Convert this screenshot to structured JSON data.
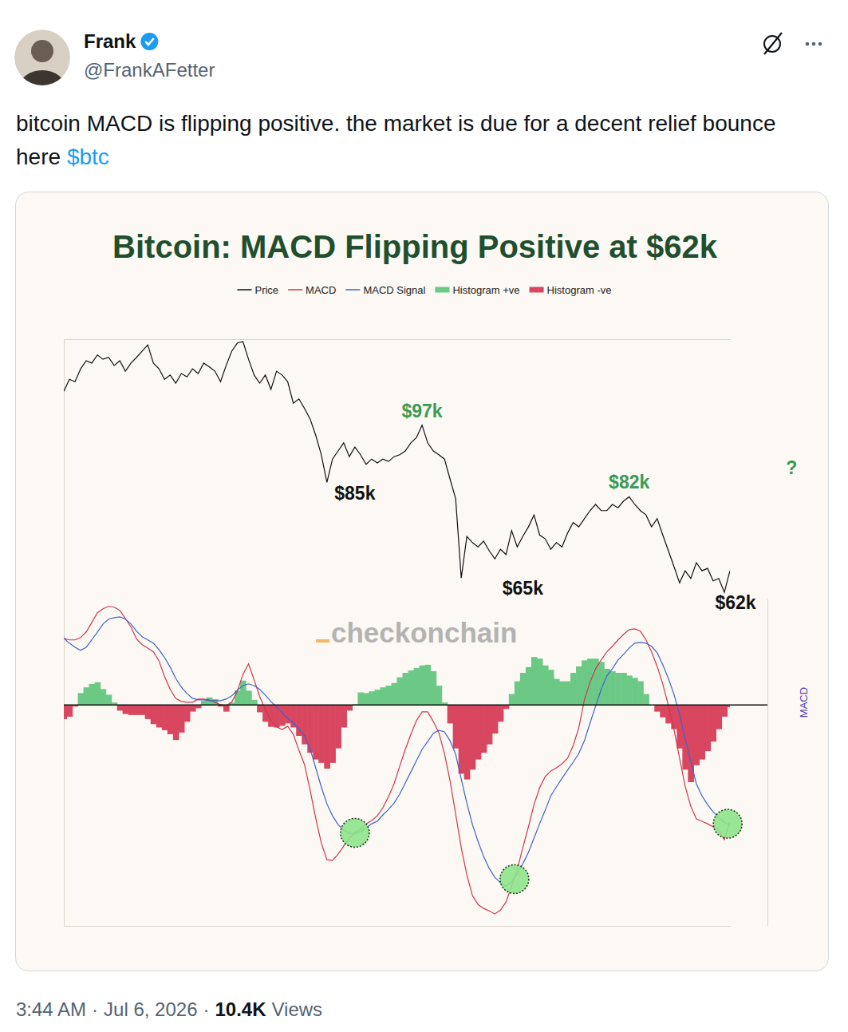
{
  "post": {
    "name": "Frank",
    "handle": "@FrankAFetter",
    "text": "bitcoin MACD is flipping positive. the market is due for a decent relief bounce here",
    "cashtag": "$btc",
    "time": "3:44 AM",
    "separator": "·",
    "date": "Jul 6, 2026",
    "views": "10.4K",
    "views_label": "Views"
  },
  "chart_data": [
    {
      "type": "line",
      "title": "Bitcoin: MACD Flipping Positive at $62k",
      "legend": "top",
      "tick_labels": false,
      "x": [
        0,
        1,
        2,
        3,
        4,
        5,
        6,
        7,
        8,
        9,
        10,
        11,
        12,
        13,
        14,
        15,
        16,
        17,
        18,
        19,
        20,
        21,
        22,
        23,
        24,
        25,
        26,
        27,
        28,
        29,
        30,
        31,
        32,
        33,
        34,
        35,
        36,
        37,
        38,
        39,
        40,
        41,
        42,
        43,
        44,
        45,
        46,
        47,
        48,
        49,
        50,
        51,
        52,
        53,
        54,
        55,
        56,
        57,
        58,
        59,
        60,
        61,
        62,
        63,
        64,
        65,
        66,
        67,
        68,
        69,
        70,
        71,
        72,
        73,
        74,
        75,
        76,
        77,
        78,
        79,
        80,
        81,
        82,
        83,
        84,
        85,
        86,
        87,
        88,
        89,
        90,
        91,
        92,
        93,
        94,
        95,
        96,
        97,
        98,
        99,
        100,
        101,
        102,
        103,
        104,
        105,
        106,
        107,
        108,
        109,
        110,
        111,
        112,
        113,
        114,
        115,
        116,
        117,
        118,
        119
      ],
      "xlim": [
        0,
        119
      ],
      "ylim": [
        59,
        115
      ],
      "series": [
        {
          "name": "Price",
          "type": "line",
          "color": "#111111",
          "values": [
            104.1,
            106.6,
            106.1,
            108.8,
            110.5,
            110.0,
            111.7,
            110.8,
            111.2,
            109.5,
            110.5,
            108.3,
            110.0,
            111.2,
            112.5,
            113.8,
            110.0,
            108.8,
            106.6,
            107.5,
            105.8,
            107.8,
            107.1,
            108.8,
            107.8,
            110.0,
            109.2,
            108.3,
            106.1,
            109.5,
            112.5,
            114.2,
            114.5,
            110.8,
            107.5,
            105.8,
            107.5,
            104.5,
            108.3,
            107.5,
            106.1,
            101.6,
            102.5,
            100.5,
            98.3,
            94.9,
            90.8,
            85,
            89.9,
            91.6,
            93.3,
            90.4,
            92.4,
            90.8,
            88.8,
            89.9,
            89.1,
            89.9,
            89.4,
            90.4,
            90.8,
            91.6,
            93.3,
            94.4,
            97,
            93.3,
            91.6,
            90.8,
            89.9,
            85.7,
            81.6,
            65,
            73.7,
            72.4,
            71.5,
            72.7,
            70.7,
            69.0,
            71.0,
            69.9,
            74.9,
            71.5,
            73.7,
            75.7,
            78.2,
            74.0,
            73.2,
            71.0,
            72.4,
            71.5,
            74.4,
            76.6,
            75.7,
            77.4,
            79.1,
            80.4,
            79.1,
            79.1,
            80.4,
            79.7,
            81.1,
            82,
            80.4,
            79.1,
            78.2,
            75.7,
            77.4,
            74.0,
            70.7,
            67.4,
            64.0,
            66.5,
            64.9,
            68.2,
            66.5,
            67.0,
            64.4,
            64.9,
            62,
            66.5
          ]
        }
      ],
      "annotations": [
        {
          "text": "$97k",
          "x": 64,
          "y": 97,
          "color": "#3a9a55"
        },
        {
          "text": "$85k",
          "x": 52,
          "y": 85,
          "color": "#111111"
        },
        {
          "text": "$65k",
          "x": 82,
          "y": 65,
          "color": "#111111"
        },
        {
          "text": "$82k",
          "x": 101,
          "y": 82,
          "color": "#3a9a55"
        },
        {
          "text": "$62k",
          "x": 120,
          "y": 62,
          "color": "#111111"
        },
        {
          "text": "?",
          "x": 130,
          "y": 85,
          "color": "#3a9a55"
        }
      ],
      "watermark": "checkonchain"
    },
    {
      "type": "line",
      "ylabel": "MACD",
      "tick_labels": false,
      "x": [
        0,
        1,
        2,
        3,
        4,
        5,
        6,
        7,
        8,
        9,
        10,
        11,
        12,
        13,
        14,
        15,
        16,
        17,
        18,
        19,
        20,
        21,
        22,
        23,
        24,
        25,
        26,
        27,
        28,
        29,
        30,
        31,
        32,
        33,
        34,
        35,
        36,
        37,
        38,
        39,
        40,
        41,
        42,
        43,
        44,
        45,
        46,
        47,
        48,
        49,
        50,
        51,
        52,
        53,
        54,
        55,
        56,
        57,
        58,
        59,
        60,
        61,
        62,
        63,
        64,
        65,
        66,
        67,
        68,
        69,
        70,
        71,
        72,
        73,
        74,
        75,
        76,
        77,
        78,
        79,
        80,
        81,
        82,
        83,
        84,
        85,
        86,
        87,
        88,
        89,
        90,
        91,
        92,
        93,
        94,
        95,
        96,
        97,
        98,
        99,
        100,
        101,
        102,
        103,
        104,
        105,
        106,
        107,
        108,
        109,
        110,
        111,
        112,
        113,
        114,
        115,
        116,
        117,
        118,
        119
      ],
      "xlim": [
        0,
        119
      ],
      "ylim": [
        -105,
        105
      ],
      "y2lim": [
        -65.5,
        31.5
      ],
      "series": [
        {
          "name": "MACD",
          "type": "line",
          "color": "#d0374f",
          "values": [
            79.5,
            78.5,
            78.5,
            80.0,
            83.6,
            89.7,
            95.9,
            98.5,
            100.0,
            99.5,
            97.4,
            92.3,
            86.7,
            79.0,
            75.4,
            73.3,
            70.8,
            65.1,
            54.9,
            46.7,
            41.0,
            39.0,
            38.5,
            38.5,
            40.5,
            40.5,
            40.0,
            38.5,
            36.9,
            36.4,
            38.5,
            45.6,
            56.4,
            63.1,
            52.8,
            42.1,
            33.8,
            26.7,
            22.6,
            21.0,
            23.1,
            17.9,
            7.7,
            -1.5,
            -17.9,
            -35.9,
            -51.8,
            -62.6,
            -63.1,
            -59.0,
            -53.8,
            -48.7,
            -45.1,
            -43.1,
            -39.5,
            -37.4,
            -34.4,
            -29.2,
            -22.1,
            -13.8,
            -2.6,
            8.2,
            17.9,
            26.7,
            32.3,
            32.3,
            26.2,
            19.0,
            5.6,
            -11.8,
            -33.3,
            -54.9,
            -72.3,
            -85.6,
            -91.3,
            -93.8,
            -95.4,
            -97.4,
            -94.9,
            -89.7,
            -79.5,
            -68.7,
            -54.9,
            -41.5,
            -27.2,
            -16.4,
            -9.2,
            -5.6,
            -3.6,
            -1.0,
            2.6,
            10.8,
            22.1,
            40.0,
            51.3,
            60.0,
            65.6,
            70.8,
            74.4,
            78.5,
            82.1,
            85.1,
            85.6,
            84.1,
            78.5,
            70.8,
            61.5,
            50.3,
            36.4,
            21.0,
            2.6,
            -15.4,
            -28.2,
            -36.4,
            -37.9,
            -39.5,
            -41.5,
            -43.6,
            -49.7,
            -38.5
          ]
        },
        {
          "name": "MACD Signal",
          "type": "line",
          "color": "#3f63c8",
          "values": [
            79.5,
            76.4,
            73.8,
            71.8,
            73.8,
            78.5,
            83.6,
            88.7,
            91.8,
            92.8,
            93.3,
            91.8,
            88.7,
            84.1,
            80.5,
            78.5,
            76.4,
            72.3,
            67.2,
            61.0,
            53.8,
            48.2,
            44.1,
            41.0,
            40.0,
            40.0,
            39.5,
            39.5,
            39.5,
            40.5,
            42.6,
            46.2,
            49.2,
            50.3,
            49.2,
            46.7,
            43.1,
            39.0,
            35.4,
            31.8,
            28.2,
            25.1,
            21.5,
            16.9,
            8.7,
            -3.6,
            -15.9,
            -26.7,
            -34.4,
            -40.0,
            -43.6,
            -45.6,
            -45.6,
            -44.6,
            -42.1,
            -39.5,
            -37.9,
            -33.8,
            -30.3,
            -26.2,
            -20.5,
            -13.3,
            -6.2,
            1.0,
            8.2,
            13.3,
            18.5,
            20.5,
            19.5,
            13.8,
            5.1,
            -10.8,
            -26.2,
            -40.0,
            -50.8,
            -60.5,
            -68.2,
            -73.8,
            -77.4,
            -79.5,
            -76.9,
            -71.8,
            -65.1,
            -57.9,
            -48.7,
            -39.5,
            -30.8,
            -21.5,
            -15.9,
            -10.3,
            -5.1,
            0,
            5.6,
            13.8,
            25.1,
            35.9,
            46.7,
            55.4,
            60.0,
            65.6,
            69.2,
            73.3,
            76.4,
            76.9,
            76.4,
            74.4,
            70.3,
            62.6,
            53.8,
            43.6,
            30.8,
            14.9,
            0.5,
            -13.8,
            -21.5,
            -27.2,
            -31.8,
            -35.4,
            -38.5,
            -40.5
          ]
        },
        {
          "name": "Histogram +ve",
          "type": "bar",
          "axis": "y2",
          "color": "#6cc985",
          "values": [
            null,
            null,
            null,
            3.5,
            5.2,
            6.2,
            6.7,
            4.7,
            3.0,
            0.7,
            null,
            null,
            null,
            null,
            null,
            null,
            null,
            null,
            null,
            null,
            null,
            null,
            null,
            null,
            null,
            1.2,
            2.2,
            1.7,
            null,
            null,
            0.7,
            4.2,
            7.2,
            4.2,
            1.5,
            null,
            null,
            null,
            null,
            null,
            null,
            null,
            null,
            null,
            null,
            null,
            null,
            null,
            null,
            null,
            null,
            null,
            0.2,
            3.7,
            3.5,
            4.0,
            4.5,
            5.2,
            5.7,
            6.5,
            8.2,
            9.5,
            10.2,
            10.9,
            11.7,
            11.9,
            10.0,
            5.7,
            0.7,
            null,
            null,
            null,
            null,
            null,
            null,
            null,
            null,
            null,
            null,
            null,
            3.2,
            7.0,
            9.5,
            11.2,
            14.2,
            13.7,
            11.7,
            10.4,
            7.7,
            7.0,
            7.0,
            9.5,
            11.4,
            13.2,
            13.7,
            13.7,
            12.7,
            10.7,
            10.0,
            9.5,
            9.5,
            8.7,
            8.0,
            7.0,
            3.2,
            null,
            null,
            null,
            null,
            null,
            null,
            null,
            null,
            null,
            null,
            null,
            null,
            null,
            null,
            null
          ]
        },
        {
          "name": "Histogram -ve",
          "type": "bar",
          "axis": "y2",
          "color": "#d9465f",
          "values": [
            -4.2,
            -3.5,
            -0.5,
            null,
            null,
            null,
            null,
            null,
            null,
            null,
            -1.7,
            -2.7,
            -3.0,
            -3.0,
            -3.0,
            -4.2,
            -5.7,
            -6.7,
            -7.5,
            -8.7,
            -10.4,
            -8.2,
            -5.0,
            -2.0,
            -1.0,
            null,
            null,
            null,
            -0.5,
            -2.0,
            null,
            null,
            null,
            null,
            null,
            -2.2,
            -5.0,
            -6.5,
            -6.7,
            -6.2,
            -5.5,
            -6.7,
            -9.2,
            -11.7,
            -14.2,
            -16.2,
            -17.2,
            -18.9,
            -17.2,
            -12.9,
            -6.7,
            -1.7,
            null,
            null,
            null,
            null,
            null,
            null,
            null,
            null,
            null,
            null,
            null,
            null,
            null,
            null,
            null,
            null,
            null,
            -5.5,
            -12.9,
            -20.4,
            -22.1,
            -19.2,
            -16.2,
            -14.2,
            -11.7,
            -8.5,
            -5.0,
            -1.2,
            null,
            null,
            null,
            null,
            null,
            null,
            null,
            null,
            null,
            null,
            null,
            null,
            null,
            null,
            null,
            null,
            null,
            null,
            null,
            null,
            null,
            null,
            null,
            null,
            null,
            -0.2,
            -2.0,
            -3.7,
            -5.5,
            -7.2,
            -12.9,
            -19.2,
            -22.9,
            -17.9,
            -16.2,
            -13.7,
            -10.9,
            -7.2,
            -3.5,
            -0.7
          ]
        }
      ],
      "highlights": [
        {
          "x": 52,
          "y": -45.3
        },
        {
          "x": 80.5,
          "y": -75
        },
        {
          "x": 118.6,
          "y": -39.5
        }
      ]
    }
  ]
}
